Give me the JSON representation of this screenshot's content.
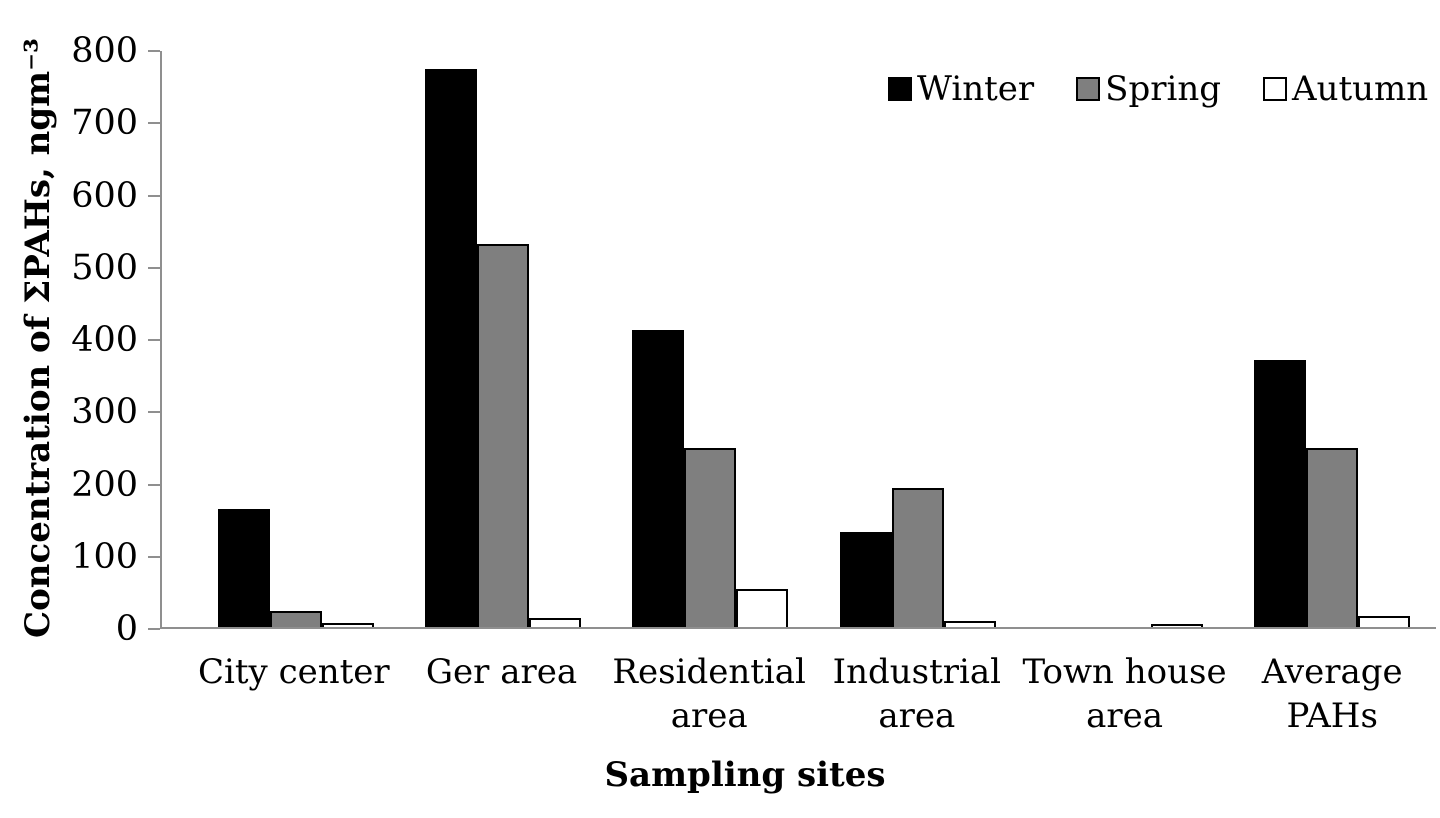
{
  "chart_data": {
    "type": "bar",
    "title": "",
    "ylabel": "Concentration of ΣPAHs, ngm⁻³",
    "xlabel": "Sampling sites",
    "ylim": [
      0,
      800
    ],
    "ytick_step": 100,
    "yticks": [
      0,
      100,
      200,
      300,
      400,
      500,
      600,
      700,
      800
    ],
    "grid": false,
    "legend_position": "top-right",
    "axis_color": "#8f8f8f",
    "categories": [
      "City center",
      "Ger area",
      "Residential area",
      "Industrial area",
      "Town house area",
      "Average PAHs"
    ],
    "category_label_lines": [
      [
        "City center"
      ],
      [
        "Ger area"
      ],
      [
        "Residential",
        "area"
      ],
      [
        "Industrial",
        "area"
      ],
      [
        "Town house",
        "area"
      ],
      [
        "Average",
        "PAHs"
      ]
    ],
    "series": [
      {
        "name": "Winter",
        "fill": "#000000",
        "border": "#000000",
        "values": [
          163,
          773,
          411,
          132,
          0,
          370
        ]
      },
      {
        "name": "Spring",
        "fill": "#7f7f7f",
        "border": "#000000",
        "values": [
          22,
          530,
          248,
          192,
          0,
          248
        ]
      },
      {
        "name": "Autumn",
        "fill": "#ffffff",
        "border": "#000000",
        "values": [
          5,
          13,
          53,
          8,
          4,
          15
        ]
      }
    ]
  }
}
